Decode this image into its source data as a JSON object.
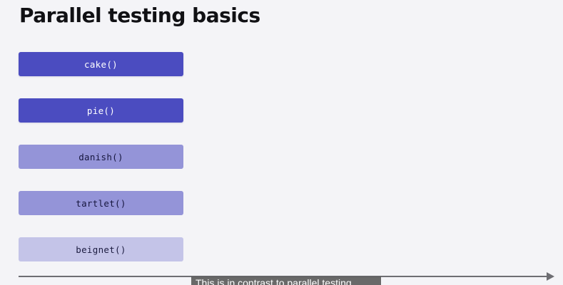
{
  "slide": {
    "title": "Parallel testing basics",
    "tests": [
      {
        "label": "cake()",
        "state": "active"
      },
      {
        "label": "pie()",
        "state": "active"
      },
      {
        "label": "danish()",
        "state": "pending"
      },
      {
        "label": "tartlet()",
        "state": "pending"
      },
      {
        "label": "beignet()",
        "state": "queued"
      }
    ],
    "caption": "This is in contrast to parallel testing,"
  },
  "colors": {
    "background": "#f4f4f7",
    "active_pill": "#4b4cc0",
    "pending_pill": "#9494d8",
    "queued_pill": "#c4c4e8",
    "timeline": "#6e6e73"
  },
  "icons": {
    "timeline_arrow": "arrow-right-icon"
  }
}
